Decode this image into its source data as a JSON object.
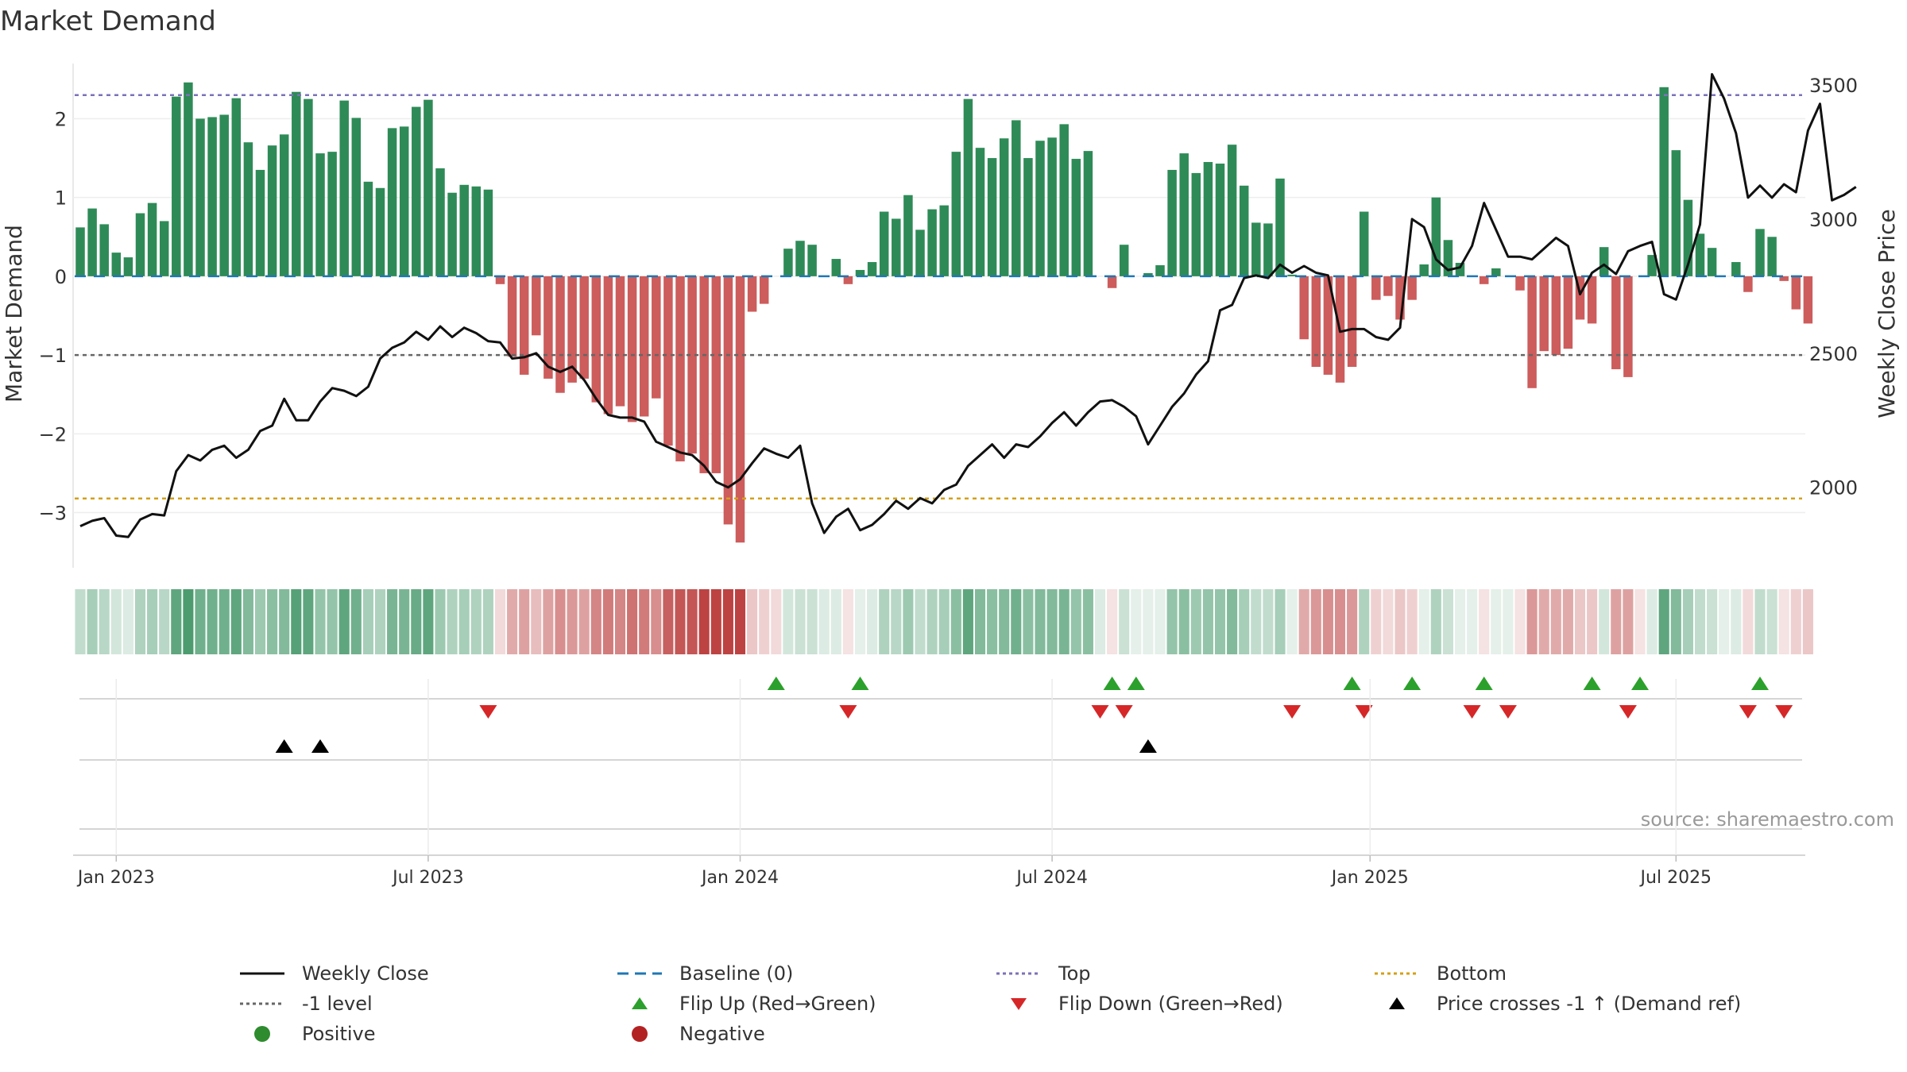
{
  "chart_data": {
    "type": "bar",
    "title": "Market Demand",
    "ylabel": "Market Demand",
    "y2label": "Weekly Close Price",
    "source": "source: sharemaestro.com",
    "ylim": [
      -3.7,
      2.7
    ],
    "y2lim": [
      1700,
      3580
    ],
    "yticks": [
      {
        "value": 2,
        "label": "2"
      },
      {
        "value": 1,
        "label": "1"
      },
      {
        "value": 0,
        "label": "0"
      },
      {
        "value": -1,
        "label": "−1"
      },
      {
        "value": -2,
        "label": "−2"
      },
      {
        "value": -3,
        "label": "−3"
      }
    ],
    "y2ticks": [
      {
        "value": 3500,
        "label": "3500"
      },
      {
        "value": 3000,
        "label": "3000"
      },
      {
        "value": 2500,
        "label": "2500"
      },
      {
        "value": 2000,
        "label": "2000"
      }
    ],
    "xticks": [
      {
        "index": 3,
        "label": "Jan 2023"
      },
      {
        "index": 29,
        "label": "Jul 2023"
      },
      {
        "index": 55,
        "label": "Jan 2024"
      },
      {
        "index": 81,
        "label": "Jul 2024"
      },
      {
        "index": 107.5,
        "label": "Jan 2025"
      },
      {
        "index": 133,
        "label": "Jul 2025"
      }
    ],
    "levels": {
      "top": 2.3,
      "bottom": -2.82,
      "minus_one": -1
    },
    "colors": {
      "positive": "#2e8b57",
      "negative": "#cd5c5c",
      "close": "#111111",
      "baseline": "#1f77b4",
      "top": "#7b72b8",
      "bottom": "#d4a017",
      "minus_one": "#666666",
      "flip_up": "#2ca02c",
      "flip_down": "#d62728",
      "cross": "#000000",
      "positive_dot": "#2e8b2e",
      "negative_dot": "#b22222"
    },
    "demand": [
      0.62,
      0.86,
      0.66,
      0.3,
      0.24,
      0.8,
      0.93,
      0.7,
      2.28,
      2.46,
      2.0,
      2.02,
      2.05,
      2.26,
      1.7,
      1.35,
      1.66,
      1.8,
      2.34,
      2.25,
      1.56,
      1.58,
      2.23,
      2.01,
      1.2,
      1.12,
      1.88,
      1.9,
      2.15,
      2.24,
      1.37,
      1.06,
      1.16,
      1.14,
      1.1,
      -0.1,
      -1.02,
      -1.25,
      -0.75,
      -1.3,
      -1.48,
      -1.35,
      -1.3,
      -1.6,
      -1.75,
      -1.65,
      -1.85,
      -1.78,
      -1.55,
      -2.15,
      -2.35,
      -2.25,
      -2.5,
      -2.5,
      -3.15,
      -3.38,
      -0.45,
      -0.35,
      0.0,
      0.35,
      0.45,
      0.4,
      0.0,
      0.22,
      -0.1,
      0.08,
      0.18,
      0.82,
      0.73,
      1.03,
      0.59,
      0.85,
      0.9,
      1.58,
      2.25,
      1.63,
      1.5,
      1.75,
      1.98,
      1.5,
      1.72,
      1.76,
      1.93,
      1.49,
      1.59,
      0.0,
      -0.15,
      0.4,
      0.0,
      0.04,
      0.14,
      1.35,
      1.56,
      1.31,
      1.45,
      1.43,
      1.67,
      1.15,
      0.68,
      0.67,
      1.24,
      0.02,
      -0.8,
      -1.15,
      -1.25,
      -1.35,
      -1.15,
      0.82,
      -0.3,
      -0.25,
      -0.55,
      -0.3,
      0.15,
      1.0,
      0.46,
      0.17,
      0.0,
      -0.1,
      0.1,
      0.0,
      -0.18,
      -1.42,
      -0.95,
      -1.0,
      -0.92,
      -0.55,
      -0.6,
      0.37,
      -1.18,
      -1.28,
      0.0,
      0.27,
      2.4,
      1.6,
      0.97,
      0.54,
      0.36,
      0.0,
      0.18,
      -0.2,
      0.6,
      0.5,
      -0.06,
      -0.42,
      -0.6
    ],
    "close": [
      1855,
      1875,
      1885,
      1820,
      1815,
      1880,
      1900,
      1895,
      2060,
      2120,
      2100,
      2140,
      2155,
      2110,
      2140,
      2210,
      2230,
      2330,
      2250,
      2250,
      2320,
      2370,
      2360,
      2340,
      2375,
      2480,
      2520,
      2540,
      2580,
      2550,
      2600,
      2560,
      2595,
      2575,
      2545,
      2540,
      2480,
      2485,
      2500,
      2450,
      2430,
      2450,
      2400,
      2330,
      2270,
      2260,
      2260,
      2245,
      2170,
      2150,
      2130,
      2120,
      2080,
      2020,
      2000,
      2030,
      2090,
      2145,
      2125,
      2110,
      2155,
      1940,
      1830,
      1890,
      1920,
      1840,
      1860,
      1900,
      1950,
      1920,
      1960,
      1940,
      1990,
      2010,
      2080,
      2120,
      2160,
      2110,
      2160,
      2150,
      2190,
      2240,
      2280,
      2230,
      2280,
      2320,
      2325,
      2300,
      2265,
      2160,
      2230,
      2300,
      2350,
      2420,
      2470,
      2660,
      2680,
      2780,
      2790,
      2780,
      2830,
      2800,
      2825,
      2800,
      2790,
      2580,
      2590,
      2590,
      2560,
      2550,
      2595,
      3000,
      2970,
      2850,
      2810,
      2820,
      2900,
      3060,
      2960,
      2860,
      2860,
      2850,
      2890,
      2930,
      2900,
      2720,
      2800,
      2830,
      2795,
      2880,
      2900,
      2915,
      2720,
      2700,
      2830,
      2980,
      3540,
      3450,
      3320,
      3080,
      3125,
      3080,
      3130,
      3100,
      3330,
      3430,
      3070,
      3090,
      3120
    ],
    "heat_alpha": [
      0.35,
      0.5,
      0.4,
      0.25,
      0.2,
      0.45,
      0.5,
      0.4,
      0.9,
      1.0,
      0.8,
      0.8,
      0.8,
      0.9,
      0.7,
      0.55,
      0.65,
      0.7,
      0.95,
      0.9,
      0.6,
      0.6,
      0.9,
      0.8,
      0.5,
      0.45,
      0.75,
      0.75,
      0.85,
      0.9,
      0.55,
      0.45,
      0.5,
      0.45,
      0.45,
      0.2,
      0.45,
      0.5,
      0.35,
      0.5,
      0.6,
      0.55,
      0.5,
      0.65,
      0.7,
      0.65,
      0.75,
      0.7,
      0.6,
      0.85,
      0.9,
      0.9,
      1.0,
      1.0,
      1.0,
      1.0,
      0.3,
      0.25,
      0.2,
      0.25,
      0.3,
      0.3,
      0.2,
      0.2,
      0.15,
      0.15,
      0.2,
      0.45,
      0.4,
      0.55,
      0.35,
      0.45,
      0.5,
      0.65,
      0.9,
      0.7,
      0.65,
      0.7,
      0.8,
      0.65,
      0.7,
      0.7,
      0.75,
      0.6,
      0.65,
      0.2,
      0.15,
      0.3,
      0.15,
      0.15,
      0.15,
      0.6,
      0.65,
      0.55,
      0.6,
      0.6,
      0.7,
      0.5,
      0.35,
      0.35,
      0.5,
      0.15,
      0.45,
      0.55,
      0.6,
      0.6,
      0.55,
      0.45,
      0.25,
      0.2,
      0.3,
      0.25,
      0.15,
      0.45,
      0.3,
      0.15,
      0.15,
      0.15,
      0.15,
      0.15,
      0.15,
      0.55,
      0.45,
      0.45,
      0.45,
      0.3,
      0.3,
      0.25,
      0.5,
      0.5,
      0.15,
      0.2,
      0.9,
      0.7,
      0.5,
      0.35,
      0.3,
      0.15,
      0.2,
      0.2,
      0.35,
      0.3,
      0.15,
      0.25,
      0.3
    ],
    "flip_up": [
      58,
      65,
      86,
      88,
      106,
      111,
      117,
      126,
      130,
      140
    ],
    "flip_down": [
      34,
      64,
      85,
      87,
      101,
      107,
      116,
      119,
      129,
      139,
      142
    ],
    "price_crosses": [
      17,
      20,
      89
    ],
    "legend": [
      {
        "key": "weekly_close",
        "label": "Weekly Close",
        "symbol": "line-solid",
        "color": "#111111"
      },
      {
        "key": "baseline",
        "label": "Baseline (0)",
        "symbol": "line-dashed",
        "color": "#1f77b4"
      },
      {
        "key": "top",
        "label": "Top",
        "symbol": "line-dotted",
        "color": "#7b72b8"
      },
      {
        "key": "bottom",
        "label": "Bottom",
        "symbol": "line-dotted",
        "color": "#d4a017"
      },
      {
        "key": "minus_one",
        "label": "-1 level",
        "symbol": "line-dotted",
        "color": "#666666"
      },
      {
        "key": "flip_up",
        "label": "Flip Up (Red→Green)",
        "symbol": "triangle-up",
        "color": "#2ca02c"
      },
      {
        "key": "flip_down",
        "label": "Flip Down (Green→Red)",
        "symbol": "triangle-down",
        "color": "#d62728"
      },
      {
        "key": "price_cross",
        "label": "Price crosses -1 ↑ (Demand ref)",
        "symbol": "triangle-up",
        "color": "#000000"
      },
      {
        "key": "positive",
        "label": "Positive",
        "symbol": "circle",
        "color": "#2e8b2e"
      },
      {
        "key": "negative",
        "label": "Negative",
        "symbol": "circle",
        "color": "#b22222"
      }
    ]
  }
}
